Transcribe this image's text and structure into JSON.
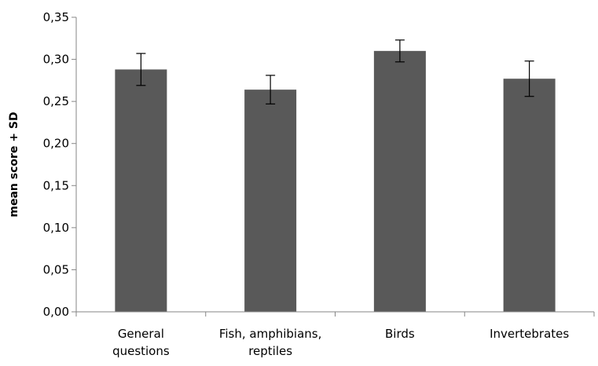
{
  "chart_data": {
    "type": "bar",
    "categories": [
      [
        "General",
        "questions"
      ],
      [
        "Fish, amphibians,",
        "reptiles"
      ],
      [
        "Birds"
      ],
      [
        "Invertebrates"
      ]
    ],
    "values": [
      0.288,
      0.264,
      0.31,
      0.277
    ],
    "errors": [
      0.019,
      0.017,
      0.013,
      0.021
    ],
    "ylabel": "mean score + SD",
    "xlabel": "",
    "ylim": [
      0,
      0.35
    ],
    "yticks": [
      "0,00",
      "0,05",
      "0,10",
      "0,15",
      "0,20",
      "0,25",
      "0,30",
      "0,35"
    ],
    "ytick_values": [
      0,
      0.05,
      0.1,
      0.15,
      0.2,
      0.25,
      0.3,
      0.35
    ],
    "bar_color": "#595959",
    "grid": false,
    "legend": "none"
  }
}
